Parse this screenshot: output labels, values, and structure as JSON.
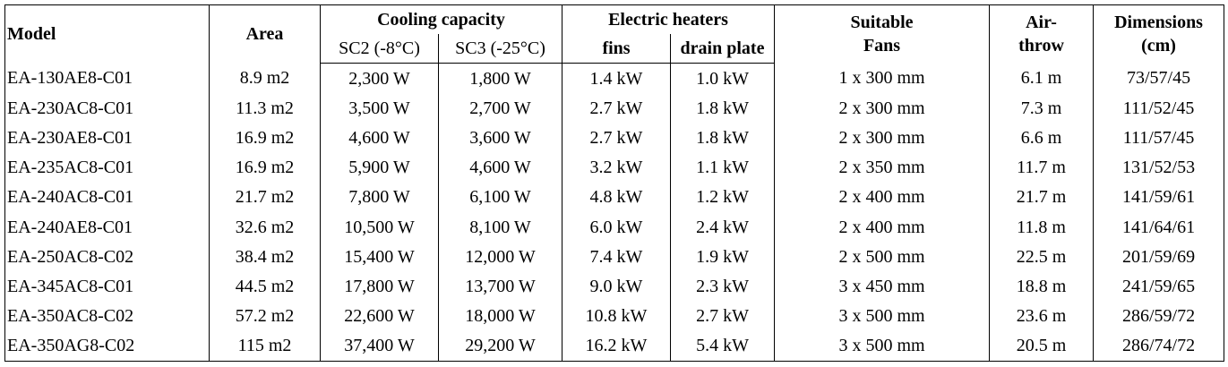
{
  "table": {
    "header": {
      "model": "Model",
      "area": "Area",
      "cooling_capacity": "Cooling capacity",
      "sc2": "SC2 (-8°C)",
      "sc3": "SC3 (-25°C)",
      "electric_heaters": "Electric heaters",
      "fins": "fins",
      "drain_plate": "drain plate",
      "suitable_fans": [
        "Suitable",
        "Fans"
      ],
      "air_throw": [
        "Air-",
        "throw"
      ],
      "dimensions": [
        "Dimensions",
        "(cm)"
      ]
    },
    "rows": [
      [
        "EA-130AE8-C01",
        "8.9 m2",
        "2,300 W",
        "1,800 W",
        "1.4 kW",
        "1.0 kW",
        "1 x 300 mm",
        "6.1 m",
        "73/57/45"
      ],
      [
        "EA-230AC8-C01",
        "11.3 m2",
        "3,500 W",
        "2,700 W",
        "2.7 kW",
        "1.8 kW",
        "2 x 300 mm",
        "7.3 m",
        "111/52/45"
      ],
      [
        "EA-230AE8-C01",
        "16.9 m2",
        "4,600 W",
        "3,600 W",
        "2.7 kW",
        "1.8 kW",
        "2 x 300 mm",
        "6.6 m",
        "111/57/45"
      ],
      [
        "EA-235AC8-C01",
        "16.9 m2",
        "5,900 W",
        "4,600 W",
        "3.2 kW",
        "1.1 kW",
        "2 x 350 mm",
        "11.7 m",
        "131/52/53"
      ],
      [
        "EA-240AC8-C01",
        "21.7 m2",
        "7,800 W",
        "6,100 W",
        "4.8 kW",
        "1.2 kW",
        "2 x 400 mm",
        "21.7 m",
        "141/59/61"
      ],
      [
        "EA-240AE8-C01",
        "32.6 m2",
        "10,500 W",
        "8,100 W",
        "6.0 kW",
        "2.4 kW",
        "2 x 400 mm",
        "11.8 m",
        "141/64/61"
      ],
      [
        "EA-250AC8-C02",
        "38.4 m2",
        "15,400 W",
        "12,000 W",
        "7.4 kW",
        "1.9 kW",
        "2 x 500 mm",
        "22.5 m",
        "201/59/69"
      ],
      [
        "EA-345AC8-C01",
        "44.5 m2",
        "17,800 W",
        "13,700 W",
        "9.0 kW",
        "2.3 kW",
        "3 x 450 mm",
        "18.8 m",
        "241/59/65"
      ],
      [
        "EA-350AC8-C02",
        "57.2 m2",
        "22,600 W",
        "18,000 W",
        "10.8 kW",
        "2.7 kW",
        "3 x 500 mm",
        "23.6 m",
        "286/59/72"
      ],
      [
        "EA-350AG8-C02",
        "115 m2",
        "37,400 W",
        "29,200 W",
        "16.2 kW",
        "5.4 kW",
        "3 x 500 mm",
        "20.5 m",
        "286/74/72"
      ]
    ]
  }
}
